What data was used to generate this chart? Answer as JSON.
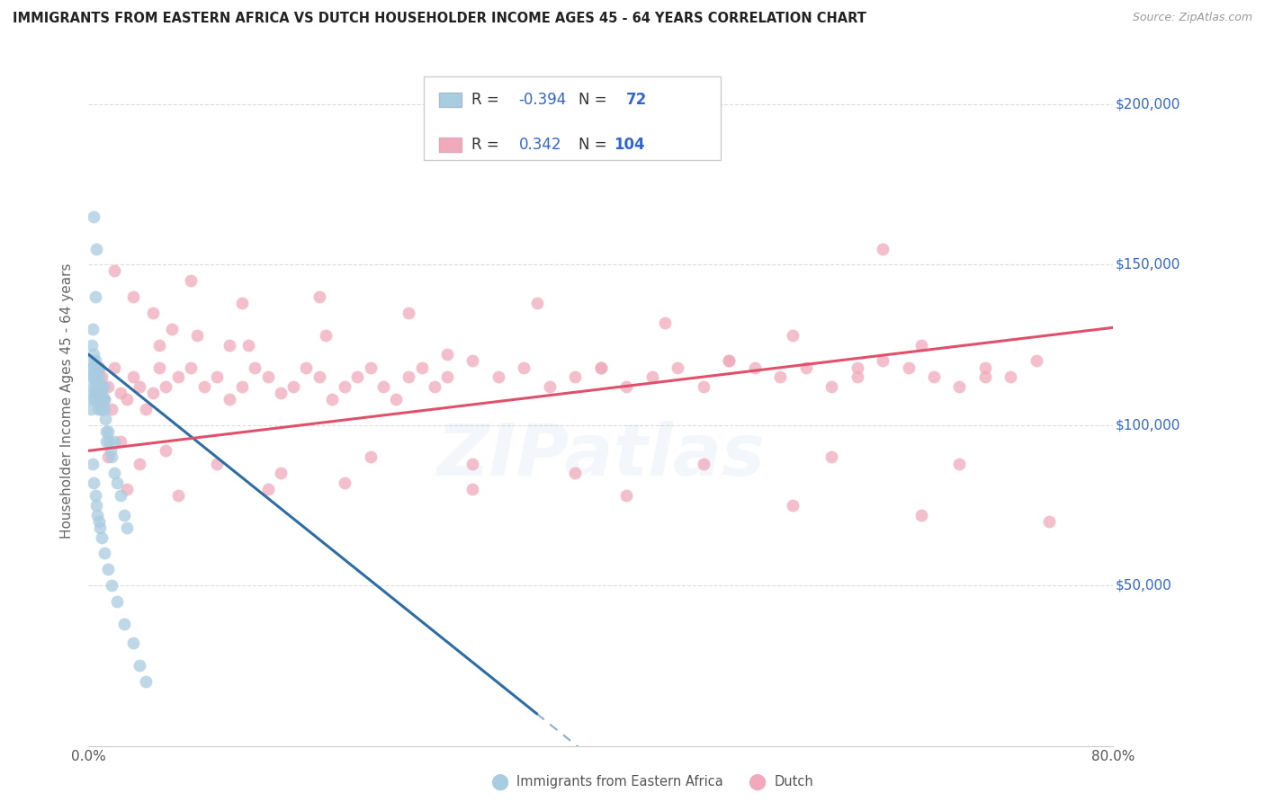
{
  "title": "IMMIGRANTS FROM EASTERN AFRICA VS DUTCH HOUSEHOLDER INCOME AGES 45 - 64 YEARS CORRELATION CHART",
  "source": "Source: ZipAtlas.com",
  "ylabel": "Householder Income Ages 45 - 64 years",
  "yticks": [
    0,
    50000,
    100000,
    150000,
    200000
  ],
  "ytick_labels": [
    "",
    "$50,000",
    "$100,000",
    "$150,000",
    "$200,000"
  ],
  "blue_R": "-0.394",
  "blue_N": "72",
  "pink_R": "0.342",
  "pink_N": "104",
  "blue_color": "#a8cce0",
  "blue_line_color": "#2e6da4",
  "pink_color": "#f0aabb",
  "pink_line_color": "#e0506a",
  "blue_scatter_x": [
    0.18,
    0.22,
    0.25,
    0.28,
    0.3,
    0.32,
    0.35,
    0.38,
    0.4,
    0.42,
    0.45,
    0.48,
    0.5,
    0.52,
    0.55,
    0.58,
    0.6,
    0.62,
    0.65,
    0.68,
    0.7,
    0.72,
    0.75,
    0.78,
    0.8,
    0.82,
    0.85,
    0.88,
    0.9,
    0.92,
    0.95,
    0.98,
    1.0,
    1.05,
    1.1,
    1.15,
    1.2,
    1.25,
    1.3,
    1.35,
    1.4,
    1.5,
    1.6,
    1.7,
    1.8,
    2.0,
    2.2,
    2.5,
    2.8,
    3.0,
    0.3,
    0.4,
    0.5,
    0.6,
    0.7,
    0.8,
    0.9,
    1.0,
    1.2,
    1.5,
    1.8,
    2.2,
    2.8,
    3.5,
    4.0,
    4.5,
    2.0,
    0.6,
    0.4,
    0.5,
    0.35,
    0.25
  ],
  "blue_scatter_y": [
    105000,
    115000,
    120000,
    118000,
    112000,
    108000,
    115000,
    122000,
    118000,
    110000,
    108000,
    115000,
    120000,
    112000,
    115000,
    118000,
    110000,
    115000,
    112000,
    108000,
    118000,
    112000,
    105000,
    110000,
    118000,
    115000,
    108000,
    112000,
    110000,
    105000,
    108000,
    112000,
    110000,
    105000,
    108000,
    112000,
    108000,
    105000,
    102000,
    98000,
    95000,
    98000,
    95000,
    92000,
    90000,
    85000,
    82000,
    78000,
    72000,
    68000,
    88000,
    82000,
    78000,
    75000,
    72000,
    70000,
    68000,
    65000,
    60000,
    55000,
    50000,
    45000,
    38000,
    32000,
    25000,
    20000,
    95000,
    155000,
    165000,
    140000,
    130000,
    125000
  ],
  "pink_scatter_x": [
    0.5,
    0.8,
    1.0,
    1.2,
    1.5,
    1.8,
    2.0,
    2.5,
    3.0,
    3.5,
    4.0,
    4.5,
    5.0,
    5.5,
    6.0,
    7.0,
    8.0,
    9.0,
    10.0,
    11.0,
    12.0,
    13.0,
    14.0,
    15.0,
    16.0,
    17.0,
    18.0,
    19.0,
    20.0,
    21.0,
    22.0,
    23.0,
    24.0,
    25.0,
    26.0,
    27.0,
    28.0,
    30.0,
    32.0,
    34.0,
    36.0,
    38.0,
    40.0,
    42.0,
    44.0,
    46.0,
    48.0,
    50.0,
    52.0,
    54.0,
    56.0,
    58.0,
    60.0,
    62.0,
    64.0,
    66.0,
    68.0,
    70.0,
    72.0,
    74.0,
    2.0,
    3.5,
    5.0,
    8.0,
    12.0,
    18.0,
    25.0,
    35.0,
    45.0,
    55.0,
    65.0,
    62.0,
    1.5,
    2.5,
    4.0,
    6.0,
    10.0,
    15.0,
    22.0,
    30.0,
    38.0,
    48.0,
    58.0,
    68.0,
    5.5,
    8.5,
    12.5,
    18.5,
    28.0,
    40.0,
    50.0,
    60.0,
    70.0,
    3.0,
    7.0,
    14.0,
    20.0,
    30.0,
    42.0,
    55.0,
    65.0,
    75.0,
    6.5,
    11.0
  ],
  "pink_scatter_y": [
    110000,
    118000,
    115000,
    108000,
    112000,
    105000,
    118000,
    110000,
    108000,
    115000,
    112000,
    105000,
    110000,
    118000,
    112000,
    115000,
    118000,
    112000,
    115000,
    108000,
    112000,
    118000,
    115000,
    110000,
    112000,
    118000,
    115000,
    108000,
    112000,
    115000,
    118000,
    112000,
    108000,
    115000,
    118000,
    112000,
    115000,
    120000,
    115000,
    118000,
    112000,
    115000,
    118000,
    112000,
    115000,
    118000,
    112000,
    120000,
    118000,
    115000,
    118000,
    112000,
    115000,
    120000,
    118000,
    115000,
    112000,
    118000,
    115000,
    120000,
    148000,
    140000,
    135000,
    145000,
    138000,
    140000,
    135000,
    138000,
    132000,
    128000,
    125000,
    155000,
    90000,
    95000,
    88000,
    92000,
    88000,
    85000,
    90000,
    88000,
    85000,
    88000,
    90000,
    88000,
    125000,
    128000,
    125000,
    128000,
    122000,
    118000,
    120000,
    118000,
    115000,
    80000,
    78000,
    80000,
    82000,
    80000,
    78000,
    75000,
    72000,
    70000,
    130000,
    125000
  ],
  "blue_solid_x0": 0.0,
  "blue_solid_x1": 35.0,
  "blue_dash_x0": 35.0,
  "blue_dash_x1": 80.0,
  "blue_intercept": 122000,
  "blue_slope": -3200,
  "pink_solid_x0": 0.0,
  "pink_solid_x1": 80.0,
  "pink_intercept": 92000,
  "pink_slope": 480,
  "xmin": 0.0,
  "xmax": 80.0,
  "ymin": 0,
  "ymax": 215000,
  "watermark": "ZIPatlas",
  "bg_color": "#ffffff",
  "grid_color": "#cccccc"
}
